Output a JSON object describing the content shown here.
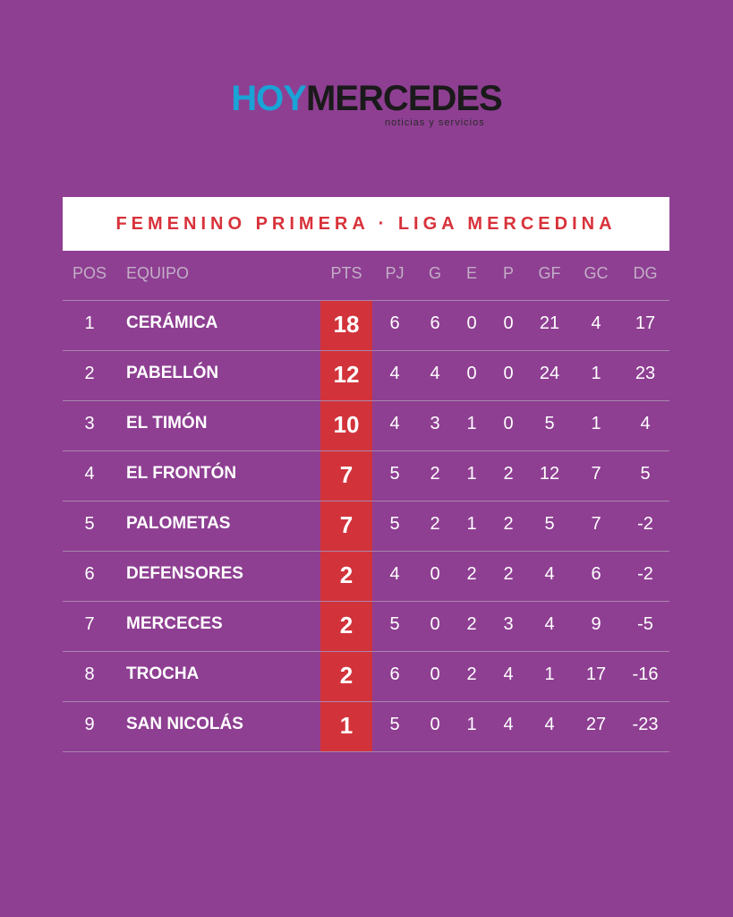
{
  "header": {
    "logo_part1": "HOY",
    "logo_part2": "MERCEDES",
    "tagline": "noticias y servicios"
  },
  "table": {
    "title": "FEMENINO PRIMERA · LIGA MERCEDINA",
    "columns": [
      "POS",
      "EQUIPO",
      "PTS",
      "PJ",
      "G",
      "E",
      "P",
      "GF",
      "GC",
      "DG"
    ],
    "rows": [
      [
        1,
        "CERÁMICA",
        18,
        6,
        6,
        0,
        0,
        21,
        4,
        17
      ],
      [
        2,
        "PABELLÓN",
        12,
        4,
        4,
        0,
        0,
        24,
        1,
        23
      ],
      [
        3,
        "EL TIMÓN",
        10,
        4,
        3,
        1,
        0,
        5,
        1,
        4
      ],
      [
        4,
        "EL FRONTÓN",
        7,
        5,
        2,
        1,
        2,
        12,
        7,
        5
      ],
      [
        5,
        "PALOMETAS",
        7,
        5,
        2,
        1,
        2,
        5,
        7,
        -2
      ],
      [
        6,
        "DEFENSORES",
        2,
        4,
        0,
        2,
        2,
        4,
        6,
        -2
      ],
      [
        7,
        "MERCECES",
        2,
        5,
        0,
        2,
        3,
        4,
        9,
        -5
      ],
      [
        8,
        "TROCHA",
        2,
        6,
        0,
        2,
        4,
        1,
        17,
        -16
      ],
      [
        9,
        "SAN NICOLÁS",
        1,
        5,
        0,
        1,
        4,
        4,
        27,
        -23
      ]
    ]
  }
}
